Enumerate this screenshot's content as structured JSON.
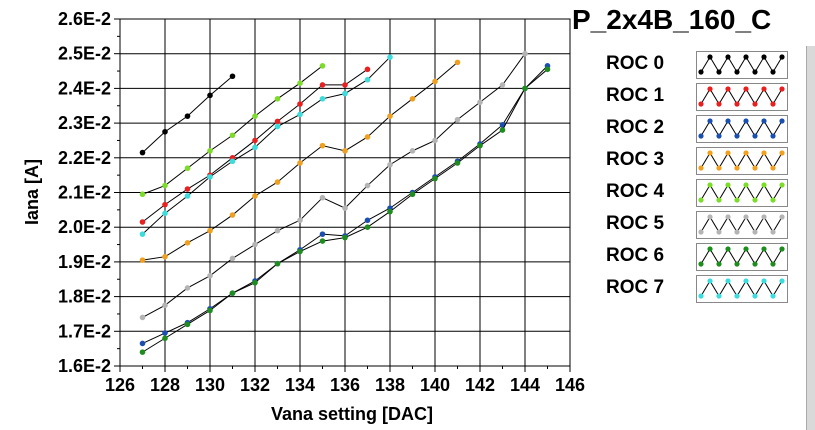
{
  "chart_data": {
    "type": "line",
    "title": "P_2x4B_160_C",
    "xlabel": "Vana setting [DAC]",
    "ylabel": "Iana [A]",
    "xlim": [
      126,
      146
    ],
    "ylim": [
      0.016,
      0.026
    ],
    "x_ticks": [
      126,
      128,
      130,
      132,
      134,
      136,
      138,
      140,
      142,
      144,
      146
    ],
    "y_ticks": [
      {
        "value": 0.016,
        "label": "1.6E-2"
      },
      {
        "value": 0.017,
        "label": "1.7E-2"
      },
      {
        "value": 0.018,
        "label": "1.8E-2"
      },
      {
        "value": 0.019,
        "label": "1.9E-2"
      },
      {
        "value": 0.02,
        "label": "2.0E-2"
      },
      {
        "value": 0.021,
        "label": "2.1E-2"
      },
      {
        "value": 0.022,
        "label": "2.2E-2"
      },
      {
        "value": 0.023,
        "label": "2.3E-2"
      },
      {
        "value": 0.024,
        "label": "2.4E-2"
      },
      {
        "value": 0.025,
        "label": "2.5E-2"
      },
      {
        "value": 0.026,
        "label": "2.6E-2"
      }
    ],
    "grid": true,
    "legend_position": "right",
    "series": [
      {
        "name": "ROC 0",
        "color": "#000000",
        "x": [
          127,
          128,
          129,
          130,
          131
        ],
        "y": [
          0.02215,
          0.02275,
          0.0232,
          0.0238,
          0.02435
        ]
      },
      {
        "name": "ROC 1",
        "color": "#e82020",
        "x": [
          127,
          128,
          129,
          130,
          131,
          132,
          133,
          134,
          135,
          136,
          137
        ],
        "y": [
          0.02015,
          0.02065,
          0.0211,
          0.0215,
          0.022,
          0.0225,
          0.02305,
          0.02355,
          0.0241,
          0.0241,
          0.02455
        ]
      },
      {
        "name": "ROC 2",
        "color": "#1a4fb0",
        "x": [
          127,
          128,
          129,
          130,
          131,
          132,
          133,
          134,
          135,
          136,
          137,
          138,
          139,
          140,
          141,
          142,
          143,
          144,
          145
        ],
        "y": [
          0.01665,
          0.01695,
          0.01725,
          0.01765,
          0.0181,
          0.01845,
          0.01895,
          0.01935,
          0.0198,
          0.01975,
          0.0202,
          0.02055,
          0.021,
          0.02145,
          0.0219,
          0.0224,
          0.02295,
          0.024,
          0.02465
        ]
      },
      {
        "name": "ROC 3",
        "color": "#f0a020",
        "x": [
          127,
          128,
          129,
          130,
          131,
          132,
          133,
          134,
          135,
          136,
          137,
          138,
          139,
          140,
          141
        ],
        "y": [
          0.01905,
          0.01915,
          0.01955,
          0.0199,
          0.02035,
          0.0209,
          0.0213,
          0.02185,
          0.02235,
          0.0222,
          0.0226,
          0.0232,
          0.0237,
          0.0242,
          0.02475
        ]
      },
      {
        "name": "ROC 4",
        "color": "#7ddc2a",
        "x": [
          127,
          128,
          129,
          130,
          131,
          132,
          133,
          134,
          135
        ],
        "y": [
          0.02095,
          0.0212,
          0.0217,
          0.0222,
          0.02265,
          0.0232,
          0.0237,
          0.02415,
          0.02465
        ]
      },
      {
        "name": "ROC 5",
        "color": "#b4b4b4",
        "x": [
          127,
          128,
          129,
          130,
          131,
          132,
          133,
          134,
          135,
          136,
          137,
          138,
          139,
          140,
          141,
          142,
          143,
          144
        ],
        "y": [
          0.0174,
          0.01775,
          0.01825,
          0.0186,
          0.0191,
          0.0195,
          0.0199,
          0.0202,
          0.02085,
          0.02055,
          0.0212,
          0.0218,
          0.0222,
          0.0225,
          0.0231,
          0.0236,
          0.0241,
          0.025
        ]
      },
      {
        "name": "ROC 6",
        "color": "#1e8c1e",
        "x": [
          127,
          128,
          129,
          130,
          131,
          132,
          133,
          134,
          135,
          136,
          137,
          138,
          139,
          140,
          141,
          142,
          143,
          144,
          145
        ],
        "y": [
          0.0164,
          0.0168,
          0.0172,
          0.0176,
          0.0181,
          0.0184,
          0.01895,
          0.0193,
          0.0196,
          0.0197,
          0.02,
          0.02045,
          0.02095,
          0.0214,
          0.02185,
          0.02235,
          0.0228,
          0.024,
          0.02455
        ]
      },
      {
        "name": "ROC 7",
        "color": "#3cdcdc",
        "x": [
          127,
          128,
          129,
          130,
          131,
          132,
          133,
          134,
          135,
          136,
          137,
          138
        ],
        "y": [
          0.0198,
          0.0204,
          0.0209,
          0.02145,
          0.0219,
          0.0223,
          0.0229,
          0.02325,
          0.0237,
          0.02385,
          0.02425,
          0.0249
        ]
      }
    ]
  }
}
